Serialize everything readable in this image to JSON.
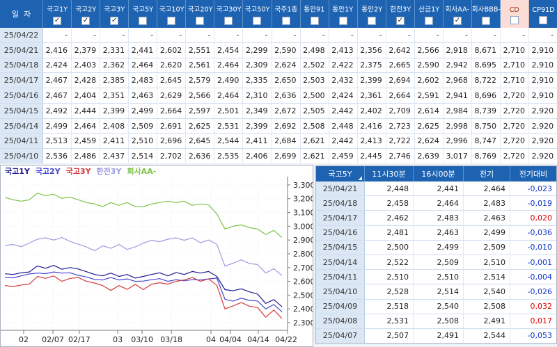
{
  "colors": {
    "header_bg": "#1e63b2",
    "cd_header_bg": "#fbddd8",
    "cd_header_text": "#993311",
    "date_cell_bg": "#dbe7f4",
    "diff_negative": "#1133cc",
    "diff_positive": "#e10000"
  },
  "top_table": {
    "date_header": "일  자",
    "columns": [
      {
        "label": "국고1Y",
        "checked": true,
        "highlight": false
      },
      {
        "label": "국고2Y",
        "checked": true,
        "highlight": false
      },
      {
        "label": "국고3Y",
        "checked": true,
        "highlight": false
      },
      {
        "label": "국고5Y",
        "checked": false,
        "highlight": false
      },
      {
        "label": "국고10Y",
        "checked": false,
        "highlight": false
      },
      {
        "label": "국고20Y",
        "checked": false,
        "highlight": false
      },
      {
        "label": "국고30Y",
        "checked": false,
        "highlight": false
      },
      {
        "label": "국고50Y",
        "checked": false,
        "highlight": false
      },
      {
        "label": "국주1종",
        "checked": false,
        "highlight": false
      },
      {
        "label": "통안91",
        "checked": false,
        "highlight": false
      },
      {
        "label": "통안1Y",
        "checked": false,
        "highlight": false
      },
      {
        "label": "통안2Y",
        "checked": false,
        "highlight": false
      },
      {
        "label": "한전3Y",
        "checked": true,
        "highlight": false
      },
      {
        "label": "산금1Y",
        "checked": false,
        "highlight": false
      },
      {
        "label": "회사AA-",
        "checked": true,
        "highlight": false
      },
      {
        "label": "회사BBB-",
        "checked": false,
        "highlight": false
      },
      {
        "label": "CD",
        "checked": false,
        "highlight": true
      },
      {
        "label": "CP91D",
        "checked": false,
        "highlight": false
      }
    ],
    "rows": [
      {
        "date": "25/04/22",
        "values": [
          "-",
          "-",
          "-",
          "-",
          "-",
          "-",
          "-",
          "-",
          "-",
          "-",
          "-",
          "-",
          "-",
          "-",
          "-",
          "-",
          "-",
          "-"
        ]
      },
      {
        "date": "25/04/21",
        "values": [
          "2,416",
          "2,379",
          "2,331",
          "2,441",
          "2,602",
          "2,551",
          "2,454",
          "2,299",
          "2,590",
          "2,498",
          "2,413",
          "2,356",
          "2,642",
          "2,566",
          "2,918",
          "8,671",
          "2,710",
          "2,910"
        ]
      },
      {
        "date": "25/04/18",
        "values": [
          "2,424",
          "2,403",
          "2,362",
          "2,464",
          "2,620",
          "2,561",
          "2,464",
          "2,309",
          "2,624",
          "2,502",
          "2,422",
          "2,375",
          "2,665",
          "2,590",
          "2,942",
          "8,695",
          "2,710",
          "2,910"
        ]
      },
      {
        "date": "25/04/17",
        "values": [
          "2,467",
          "2,428",
          "2,385",
          "2,483",
          "2,645",
          "2,579",
          "2,490",
          "2,335",
          "2,650",
          "2,503",
          "2,432",
          "2,399",
          "2,694",
          "2,602",
          "2,968",
          "8,722",
          "2,710",
          "2,910"
        ]
      },
      {
        "date": "25/04/16",
        "values": [
          "2,467",
          "2,404",
          "2,351",
          "2,463",
          "2,629",
          "2,566",
          "2,464",
          "2,310",
          "2,636",
          "2,500",
          "2,424",
          "2,361",
          "2,664",
          "2,591",
          "2,941",
          "8,696",
          "2,720",
          "2,910"
        ]
      },
      {
        "date": "25/04/15",
        "values": [
          "2,492",
          "2,444",
          "2,399",
          "2,499",
          "2,664",
          "2,597",
          "2,501",
          "2,349",
          "2,672",
          "2,505",
          "2,442",
          "2,402",
          "2,709",
          "2,614",
          "2,984",
          "8,739",
          "2,720",
          "2,920"
        ]
      },
      {
        "date": "25/04/14",
        "values": [
          "2,499",
          "2,464",
          "2,408",
          "2,509",
          "2,691",
          "2,625",
          "2,531",
          "2,399",
          "2,692",
          "2,508",
          "2,448",
          "2,416",
          "2,723",
          "2,625",
          "2,998",
          "8,750",
          "2,720",
          "2,920"
        ]
      },
      {
        "date": "25/04/11",
        "values": [
          "2,513",
          "2,459",
          "2,411",
          "2,510",
          "2,696",
          "2,645",
          "2,544",
          "2,411",
          "2,684",
          "2,621",
          "2,442",
          "2,413",
          "2,722",
          "2,624",
          "2,996",
          "8,747",
          "2,720",
          "2,920"
        ]
      },
      {
        "date": "25/04/10",
        "values": [
          "2,536",
          "2,486",
          "2,437",
          "2,514",
          "2,702",
          "2,636",
          "2,535",
          "2,406",
          "2,699",
          "2,621",
          "2,459",
          "2,445",
          "2,746",
          "2,639",
          "3,017",
          "8,769",
          "2,720",
          "2,920"
        ]
      }
    ]
  },
  "chart_data": {
    "type": "line",
    "title": "",
    "xlabel": "",
    "ylabel": "",
    "legend_position": "top-left",
    "grid": true,
    "ylim": [
      2.27,
      3.34
    ],
    "y_ticks": [
      {
        "value": 3.3,
        "label": "3,300"
      },
      {
        "value": 3.2,
        "label": "3,200"
      },
      {
        "value": 3.1,
        "label": "3,100"
      },
      {
        "value": 3.0,
        "label": "3,000"
      },
      {
        "value": 2.9,
        "label": "2,900"
      },
      {
        "value": 2.8,
        "label": "2,800"
      },
      {
        "value": 2.7,
        "label": "2,700"
      },
      {
        "value": 2.6,
        "label": "2,600"
      },
      {
        "value": 2.5,
        "label": "2,500"
      },
      {
        "value": 2.4,
        "label": "2,400"
      },
      {
        "value": 2.3,
        "label": "2,300"
      }
    ],
    "x_ticks": [
      {
        "label": "02",
        "pos": 0.08
      },
      {
        "label": "02/07",
        "pos": 0.182
      },
      {
        "label": "02/17",
        "pos": 0.274
      },
      {
        "label": "03",
        "pos": 0.408
      },
      {
        "label": "03/10",
        "pos": 0.493
      },
      {
        "label": "03/18",
        "pos": 0.595
      },
      {
        "label": "04",
        "pos": 0.733
      },
      {
        "label": "04/04",
        "pos": 0.801
      },
      {
        "label": "04/14",
        "pos": 0.898
      },
      {
        "label": "04/22",
        "pos": 1.0
      }
    ],
    "series": [
      {
        "name": "국고1Y",
        "color": "#1b1b8f",
        "values": [
          2.655,
          2.65,
          2.662,
          2.668,
          2.712,
          2.695,
          2.716,
          2.688,
          2.7,
          2.69,
          2.67,
          2.65,
          2.64,
          2.66,
          2.636,
          2.65,
          2.624,
          2.636,
          2.65,
          2.662,
          2.64,
          2.664,
          2.65,
          2.672,
          2.66,
          2.672,
          2.636,
          2.54,
          2.532,
          2.546,
          2.524,
          2.508,
          2.44,
          2.468,
          2.416
        ]
      },
      {
        "name": "국고2Y",
        "color": "#4646cf",
        "values": [
          2.63,
          2.626,
          2.64,
          2.654,
          2.66,
          2.656,
          2.668,
          2.66,
          2.662,
          2.644,
          2.632,
          2.614,
          2.61,
          2.628,
          2.61,
          2.618,
          2.6,
          2.602,
          2.612,
          2.62,
          2.6,
          2.612,
          2.604,
          2.612,
          2.61,
          2.618,
          2.624,
          2.47,
          2.456,
          2.478,
          2.462,
          2.458,
          2.4,
          2.432,
          2.379
        ]
      },
      {
        "name": "국고3Y",
        "color": "#d23b3b",
        "values": [
          2.57,
          2.562,
          2.574,
          2.58,
          2.636,
          2.622,
          2.64,
          2.6,
          2.622,
          2.628,
          2.6,
          2.588,
          2.57,
          2.534,
          2.57,
          2.542,
          2.578,
          2.54,
          2.58,
          2.59,
          2.58,
          2.6,
          2.61,
          2.628,
          2.6,
          2.618,
          2.572,
          2.4,
          2.422,
          2.446,
          2.42,
          2.41,
          2.34,
          2.392,
          2.331
        ]
      },
      {
        "name": "한전3Y",
        "color": "#9b9be0",
        "values": [
          2.86,
          2.868,
          2.852,
          2.878,
          2.906,
          2.916,
          2.9,
          2.918,
          2.89,
          2.87,
          2.85,
          2.822,
          2.858,
          2.84,
          2.868,
          2.832,
          2.85,
          2.878,
          2.898,
          2.888,
          2.906,
          2.916,
          2.898,
          2.916,
          2.88,
          2.9,
          2.87,
          2.71,
          2.732,
          2.756,
          2.73,
          2.722,
          2.66,
          2.692,
          2.642
        ]
      },
      {
        "name": "회사AA-",
        "color": "#7cc247",
        "values": [
          3.21,
          3.192,
          3.182,
          3.192,
          3.24,
          3.222,
          3.232,
          3.202,
          3.212,
          3.192,
          3.172,
          3.162,
          3.142,
          3.172,
          3.152,
          3.172,
          3.142,
          3.142,
          3.162,
          3.172,
          3.182,
          3.172,
          3.182,
          3.152,
          3.162,
          3.155,
          3.09,
          2.98,
          3.0,
          3.01,
          2.99,
          2.98,
          2.94,
          2.97,
          2.918
        ]
      }
    ]
  },
  "right_table": {
    "headers": [
      "국고5Y",
      "11시30분",
      "16시00분",
      "전기",
      "전기대비"
    ],
    "sort_column": "국고5Y",
    "rows": [
      {
        "date": "25/04/21",
        "t1130": "2,448",
        "t1600": "2,441",
        "prev": "2,464",
        "diff": "-0,023"
      },
      {
        "date": "25/04/18",
        "t1130": "2,458",
        "t1600": "2,464",
        "prev": "2,483",
        "diff": "-0,019"
      },
      {
        "date": "25/04/17",
        "t1130": "2,462",
        "t1600": "2,483",
        "prev": "2,463",
        "diff": "0,020"
      },
      {
        "date": "25/04/16",
        "t1130": "2,481",
        "t1600": "2,463",
        "prev": "2,499",
        "diff": "-0,036"
      },
      {
        "date": "25/04/15",
        "t1130": "2,500",
        "t1600": "2,499",
        "prev": "2,509",
        "diff": "-0,010"
      },
      {
        "date": "25/04/14",
        "t1130": "2,522",
        "t1600": "2,509",
        "prev": "2,510",
        "diff": "-0,001"
      },
      {
        "date": "25/04/11",
        "t1130": "2,510",
        "t1600": "2,510",
        "prev": "2,514",
        "diff": "-0,004"
      },
      {
        "date": "25/04/10",
        "t1130": "2,528",
        "t1600": "2,514",
        "prev": "2,540",
        "diff": "-0,026"
      },
      {
        "date": "25/04/09",
        "t1130": "2,518",
        "t1600": "2,540",
        "prev": "2,508",
        "diff": "0,032"
      },
      {
        "date": "25/04/08",
        "t1130": "2,531",
        "t1600": "2,508",
        "prev": "2,491",
        "diff": "0,017"
      },
      {
        "date": "25/04/07",
        "t1130": "2,507",
        "t1600": "2,491",
        "prev": "2,544",
        "diff": "-0,053"
      }
    ]
  }
}
